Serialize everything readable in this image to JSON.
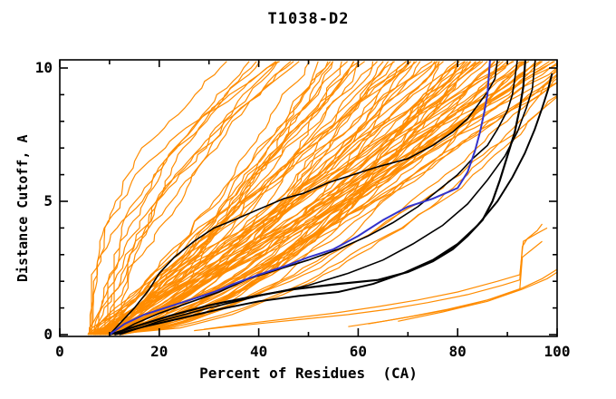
{
  "window": {
    "background": "#ffffff"
  },
  "chart_data": {
    "type": "line",
    "title": "T1038-D2",
    "xlabel": "Percent of Residues  (CA)",
    "ylabel": "Distance Cutoff, A",
    "xlim": [
      0,
      100
    ],
    "ylim": [
      0,
      10
    ],
    "grid": false,
    "legend": "none",
    "x_major_ticks": [
      0,
      20,
      40,
      60,
      80,
      100
    ],
    "x_minor_ticks": [
      10,
      30,
      50,
      70,
      90
    ],
    "y_major_ticks": [
      0,
      5,
      10
    ],
    "y_minor_ticks": [
      1,
      2,
      3,
      4,
      6,
      7,
      8,
      9
    ],
    "colors": {
      "ensemble": "#ff8c00",
      "highlight_model": "#3333cc",
      "reference_models": "#000000",
      "axis": "#000000",
      "background": "#ffffff"
    },
    "series": [
      {
        "name": "model-blue-highlight",
        "color": "#3333cc",
        "width": 2.0,
        "points": [
          [
            10,
            0
          ],
          [
            13,
            0.4
          ],
          [
            17,
            0.75
          ],
          [
            22,
            1.05
          ],
          [
            27,
            1.35
          ],
          [
            31,
            1.6
          ],
          [
            35,
            1.9
          ],
          [
            40,
            2.25
          ],
          [
            45,
            2.55
          ],
          [
            50,
            2.9
          ],
          [
            55,
            3.2
          ],
          [
            60,
            3.7
          ],
          [
            65,
            4.3
          ],
          [
            70,
            4.8
          ],
          [
            75,
            5.1
          ],
          [
            80,
            5.5
          ],
          [
            82,
            6.1
          ],
          [
            83.5,
            6.9
          ],
          [
            84.5,
            7.6
          ],
          [
            85.3,
            8.3
          ],
          [
            86,
            9.0
          ],
          [
            86.5,
            10.3
          ]
        ]
      },
      {
        "name": "model-black-1",
        "color": "#000000",
        "width": 1.6,
        "points": [
          [
            10,
            0
          ],
          [
            12.5,
            0.5
          ],
          [
            15,
            1.0
          ],
          [
            18,
            1.7
          ],
          [
            20,
            2.3
          ],
          [
            23,
            2.9
          ],
          [
            27,
            3.5
          ],
          [
            31,
            4.0
          ],
          [
            35,
            4.3
          ],
          [
            40,
            4.7
          ],
          [
            45,
            5.1
          ],
          [
            49,
            5.3
          ],
          [
            54,
            5.7
          ],
          [
            59,
            6.0
          ],
          [
            64,
            6.3
          ],
          [
            70,
            6.6
          ],
          [
            75,
            7.1
          ],
          [
            79,
            7.6
          ],
          [
            82,
            8.1
          ],
          [
            84,
            8.6
          ],
          [
            86,
            9.1
          ],
          [
            87.5,
            9.6
          ],
          [
            88,
            10.3
          ]
        ]
      },
      {
        "name": "model-black-2",
        "color": "#000000",
        "width": 1.6,
        "points": [
          [
            11,
            0
          ],
          [
            15,
            0.4
          ],
          [
            20,
            0.8
          ],
          [
            26,
            1.2
          ],
          [
            32,
            1.6
          ],
          [
            38,
            2.1
          ],
          [
            44,
            2.45
          ],
          [
            50,
            2.8
          ],
          [
            56,
            3.2
          ],
          [
            62,
            3.7
          ],
          [
            67,
            4.2
          ],
          [
            72,
            4.8
          ],
          [
            76,
            5.4
          ],
          [
            80,
            6.0
          ],
          [
            83,
            6.6
          ],
          [
            86,
            7.1
          ],
          [
            88,
            7.7
          ],
          [
            90,
            8.4
          ],
          [
            91,
            9.0
          ],
          [
            91.5,
            9.6
          ],
          [
            92,
            10.3
          ]
        ]
      },
      {
        "name": "model-black-3-thick",
        "color": "#000000",
        "width": 2.2,
        "points": [
          [
            10,
            0
          ],
          [
            16,
            0.35
          ],
          [
            22,
            0.7
          ],
          [
            30,
            1.1
          ],
          [
            38,
            1.4
          ],
          [
            47,
            1.7
          ],
          [
            56,
            1.9
          ],
          [
            64,
            2.05
          ],
          [
            70,
            2.35
          ],
          [
            75,
            2.75
          ],
          [
            79,
            3.2
          ],
          [
            82,
            3.7
          ],
          [
            85,
            4.3
          ],
          [
            87,
            5.0
          ],
          [
            88.5,
            5.8
          ],
          [
            90,
            6.7
          ],
          [
            91.5,
            7.6
          ],
          [
            92.5,
            8.5
          ],
          [
            93.2,
            9.3
          ],
          [
            93.6,
            10.3
          ]
        ]
      },
      {
        "name": "model-black-4",
        "color": "#000000",
        "width": 2.0,
        "points": [
          [
            11,
            0
          ],
          [
            17,
            0.3
          ],
          [
            24,
            0.6
          ],
          [
            32,
            0.95
          ],
          [
            40,
            1.25
          ],
          [
            48,
            1.45
          ],
          [
            56,
            1.6
          ],
          [
            63,
            1.9
          ],
          [
            69,
            2.3
          ],
          [
            75,
            2.8
          ],
          [
            80,
            3.4
          ],
          [
            84,
            4.1
          ],
          [
            88,
            5.0
          ],
          [
            91,
            5.9
          ],
          [
            93.5,
            6.8
          ],
          [
            95.5,
            7.7
          ],
          [
            97,
            8.5
          ],
          [
            98.2,
            9.2
          ],
          [
            99,
            9.8
          ]
        ]
      },
      {
        "name": "model-black-5",
        "color": "#000000",
        "width": 1.6,
        "points": [
          [
            12,
            0
          ],
          [
            20,
            0.5
          ],
          [
            30,
            1.0
          ],
          [
            40,
            1.45
          ],
          [
            50,
            1.85
          ],
          [
            58,
            2.3
          ],
          [
            65,
            2.8
          ],
          [
            71,
            3.4
          ],
          [
            77,
            4.1
          ],
          [
            82,
            4.9
          ],
          [
            86,
            5.8
          ],
          [
            89.5,
            6.7
          ],
          [
            92,
            7.6
          ],
          [
            93.8,
            8.5
          ],
          [
            95,
            9.2
          ],
          [
            95.6,
            10.3
          ]
        ]
      },
      {
        "name": "outlier-orange-1",
        "color": "#ff8c00",
        "width": 1.2,
        "points": [
          [
            27,
            0.15
          ],
          [
            34,
            0.3
          ],
          [
            42,
            0.45
          ],
          [
            50,
            0.6
          ],
          [
            58,
            0.75
          ],
          [
            66,
            0.95
          ],
          [
            74,
            1.2
          ],
          [
            82,
            1.5
          ],
          [
            89,
            1.85
          ],
          [
            92.5,
            2.05
          ],
          [
            93,
            3.3
          ],
          [
            94,
            3.6
          ],
          [
            96,
            3.9
          ],
          [
            97,
            4.15
          ]
        ]
      },
      {
        "name": "outlier-orange-2",
        "color": "#ff8c00",
        "width": 1.2,
        "points": [
          [
            29,
            0.2
          ],
          [
            37,
            0.4
          ],
          [
            46,
            0.6
          ],
          [
            55,
            0.8
          ],
          [
            64,
            1.05
          ],
          [
            72,
            1.3
          ],
          [
            80,
            1.6
          ],
          [
            88,
            2.0
          ],
          [
            92.5,
            2.25
          ],
          [
            93.2,
            3.5
          ],
          [
            96,
            3.8
          ],
          [
            98,
            4.0
          ]
        ]
      },
      {
        "name": "outlier-orange-3",
        "color": "#ff8c00",
        "width": 1.2,
        "points": [
          [
            58,
            0.3
          ],
          [
            65,
            0.5
          ],
          [
            72,
            0.72
          ],
          [
            80,
            1.0
          ],
          [
            87,
            1.35
          ],
          [
            92.5,
            1.7
          ],
          [
            93,
            2.9
          ],
          [
            95,
            3.2
          ],
          [
            97,
            3.5
          ]
        ]
      },
      {
        "name": "outlier-orange-4",
        "color": "#ff8c00",
        "width": 1.2,
        "points": [
          [
            62,
            0.4
          ],
          [
            70,
            0.66
          ],
          [
            78,
            0.95
          ],
          [
            86,
            1.3
          ],
          [
            93,
            1.75
          ],
          [
            97,
            2.1
          ],
          [
            100,
            2.45
          ]
        ]
      },
      {
        "name": "outlier-orange-5",
        "color": "#ff8c00",
        "width": 1.2,
        "points": [
          [
            68,
            0.5
          ],
          [
            77,
            0.85
          ],
          [
            86,
            1.25
          ],
          [
            93,
            1.7
          ],
          [
            98,
            2.1
          ],
          [
            100.5,
            2.4
          ]
        ]
      }
    ],
    "ensemble": {
      "name": "server-model-curves",
      "color": "#ff8c00",
      "width": 1.2,
      "count": 95,
      "seed": 11,
      "x_start_range": [
        5.5,
        12
      ],
      "x_end_range": [
        21,
        104
      ],
      "description": "Fan of orange per-model cumulative distance-cutoff curves rising monotonically from ~6-12% of residues at 0 A; steepest reach 10 A near 21% of residues, densest bundle hugs the lower black reference curves and climbs near 80-100%."
    }
  }
}
